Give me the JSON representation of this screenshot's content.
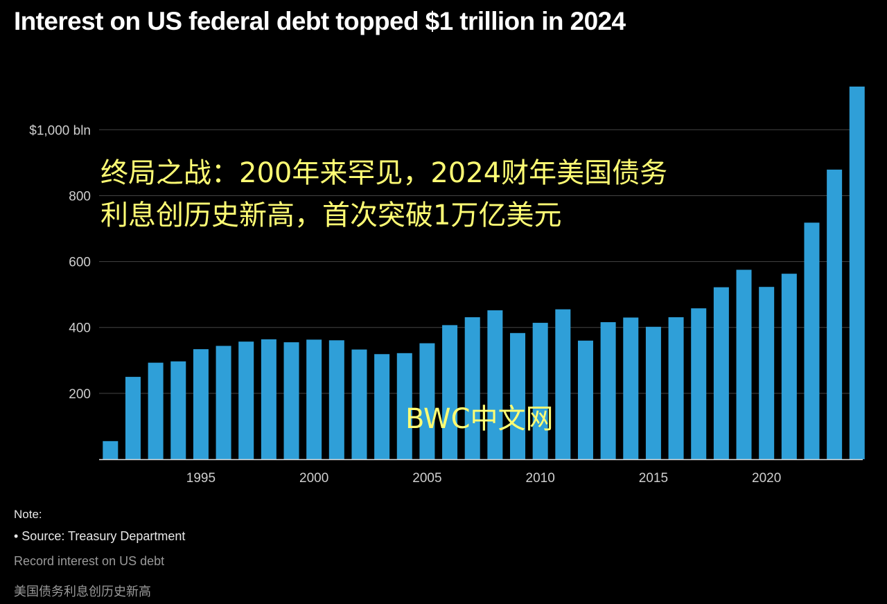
{
  "title": "Interest on US federal debt topped $1 trillion in 2024",
  "overlay": {
    "line1": "终局之战：200年来罕见，2024财年美国债务",
    "line2": "利息创历史新高，首次突破1万亿美元"
  },
  "watermark": "BWC中文网",
  "footer": {
    "note_label": "Note:",
    "note_source": "• Source: Treasury Department",
    "subtitle_en": "Record interest on US debt",
    "subtitle_zh": "美国债务利息创历史新高"
  },
  "colors": {
    "background": "#000000",
    "bar": "#2f9fd8",
    "grid": "#444444",
    "axis": "#cfcfcf",
    "overlay_text": "#fffd74"
  },
  "chart_data": {
    "type": "bar",
    "title": "Interest on US federal debt topped $1 trillion in 2024",
    "xlabel": "",
    "ylabel": "",
    "x": [
      1991,
      1992,
      1993,
      1994,
      1995,
      1996,
      1997,
      1998,
      1999,
      2000,
      2001,
      2002,
      2003,
      2004,
      2005,
      2006,
      2007,
      2008,
      2009,
      2010,
      2011,
      2012,
      2013,
      2014,
      2015,
      2016,
      2017,
      2018,
      2019,
      2020,
      2021,
      2022,
      2023,
      2024
    ],
    "values": [
      55,
      250,
      293,
      297,
      334,
      344,
      357,
      364,
      355,
      363,
      361,
      333,
      319,
      322,
      352,
      407,
      431,
      452,
      383,
      414,
      455,
      360,
      416,
      430,
      402,
      431,
      458,
      522,
      575,
      523,
      563,
      718,
      879,
      1131
    ],
    "ylim": [
      0,
      1140
    ],
    "yticks": [
      200,
      400,
      600,
      800,
      1000
    ],
    "ytick_labels": [
      "200",
      "400",
      "600",
      "800",
      "$1,000 bln"
    ],
    "xticks": [
      1995,
      2000,
      2005,
      2010,
      2015,
      2020
    ],
    "xtick_labels": [
      "1995",
      "2000",
      "2005",
      "2010",
      "2015",
      "2020"
    ],
    "grid": true,
    "legend": "none"
  }
}
